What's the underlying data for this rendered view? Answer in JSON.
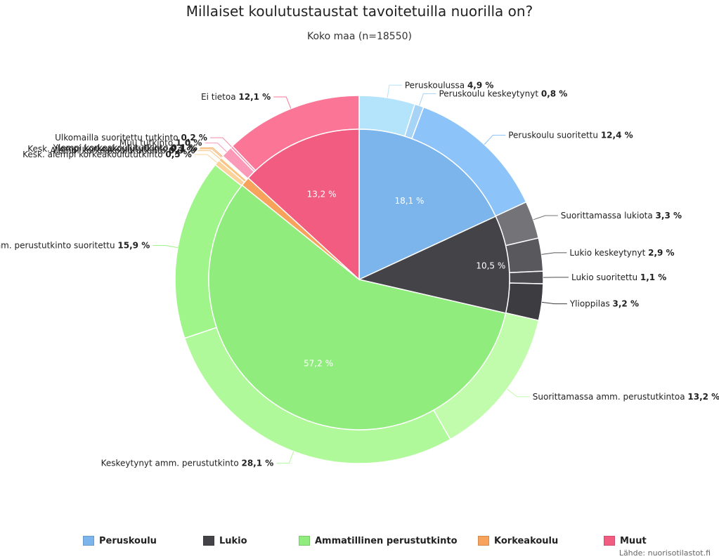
{
  "title": "Millaiset koulutustaustat tavoitetuilla nuorilla on?",
  "subtitle": "Koko maa (n=18550)",
  "source": "Lähde: nuorisotilastot.fi",
  "colors": {
    "Peruskoulu": "#7cb5ec",
    "Lukio": "#434348",
    "Ammatillinen perustutkinto": "#90ed7d",
    "Korkeakoulu": "#f7a35c",
    "Muut": "#f15c80"
  },
  "legend": [
    "Peruskoulu",
    "Lukio",
    "Ammatillinen perustutkinto",
    "Korkeakoulu",
    "Muut"
  ],
  "chart_data": {
    "type": "pie",
    "inner": {
      "categories": [
        "Peruskoulu",
        "Lukio",
        "Ammatillinen perustutkinto",
        "Korkeakoulu",
        "Muut"
      ],
      "values": [
        18.1,
        10.5,
        57.2,
        1.0,
        13.2
      ],
      "labels": [
        "18,1 %",
        "10,5 %",
        "57,2 %",
        "",
        "13,2 %"
      ]
    },
    "outer": [
      {
        "name": "Peruskoulussa",
        "value": 4.9,
        "label": "4,9 %",
        "group": "Peruskoulu",
        "shade": "#b3e4fb"
      },
      {
        "name": "Peruskoulu keskeytynyt",
        "value": 0.8,
        "label": "0,8 %",
        "group": "Peruskoulu",
        "shade": "#a6d3f6"
      },
      {
        "name": "Peruskoulu suoritettu",
        "value": 12.4,
        "label": "12,4 %",
        "group": "Peruskoulu",
        "shade": "#8cc3f9"
      },
      {
        "name": "Suorittamassa lukiota",
        "value": 3.3,
        "label": "3,3 %",
        "group": "Lukio",
        "shade": "#737378"
      },
      {
        "name": "Lukio keskeytynyt",
        "value": 2.9,
        "label": "2,9 %",
        "group": "Lukio",
        "shade": "#58585d"
      },
      {
        "name": "Lukio suoritettu",
        "value": 1.1,
        "label": "1,1 %",
        "group": "Lukio",
        "shade": "#4a4a4f"
      },
      {
        "name": "Ylioppilas",
        "value": 3.2,
        "label": "3,2 %",
        "group": "Lukio",
        "shade": "#3c3c41"
      },
      {
        "name": "Suorittamassa amm. perustutkintoa",
        "value": 13.2,
        "label": "13,2 %",
        "group": "Ammatillinen perustutkinto",
        "shade": "#c1fbac"
      },
      {
        "name": "Keskeytynyt amm. perustutkinto",
        "value": 28.1,
        "label": "28,1 %",
        "group": "Ammatillinen perustutkinto",
        "shade": "#b0f99a"
      },
      {
        "name": "Amm. perustutkinto suoritettu",
        "value": 15.9,
        "label": "15,9 %",
        "group": "Ammatillinen perustutkinto",
        "shade": "#9ff48a"
      },
      {
        "name": "Kesk. alempi korkeakoulututkinto",
        "value": 0.5,
        "label": "0,5 %",
        "group": "Korkeakoulu",
        "shade": "#fbd39a"
      },
      {
        "name": "Alempi korkeakoulututkinto",
        "value": 0.3,
        "label": "0,3 %",
        "group": "Korkeakoulu",
        "shade": "#f9c47f"
      },
      {
        "name": "Kesk. ylempi korkeakoulututkinto",
        "value": 0.1,
        "label": "0,1 %",
        "group": "Korkeakoulu",
        "shade": "#f7b56b"
      },
      {
        "name": "Ylempi korkeakoulututkinto",
        "value": 0.1,
        "label": "0,1 %",
        "group": "Korkeakoulu",
        "shade": "#f5a85d"
      },
      {
        "name": "Muu tutkinto",
        "value": 1.0,
        "label": "1,0 %",
        "group": "Muut",
        "shade": "#fa9ab8"
      },
      {
        "name": "Ulkomailla suoritettu tutkinto",
        "value": 0.2,
        "label": "0,2 %",
        "group": "Muut",
        "shade": "#f88aa9"
      },
      {
        "name": "Ei tietoa",
        "value": 12.1,
        "label": "12,1 %",
        "group": "Muut",
        "shade": "#fb7597"
      }
    ]
  }
}
